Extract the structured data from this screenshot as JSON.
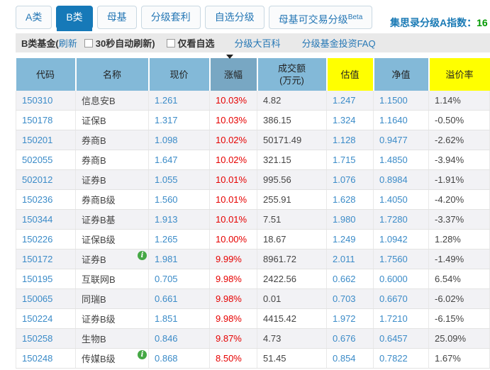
{
  "tabs": [
    {
      "label": "A类",
      "active": false
    },
    {
      "label": "B类",
      "active": true
    },
    {
      "label": "母基",
      "active": false
    },
    {
      "label": "分级套利",
      "active": false
    },
    {
      "label": "自选分级",
      "active": false
    },
    {
      "label": "母基可交易分级",
      "sup": "Beta",
      "active": false
    }
  ],
  "index_banner": {
    "label": "集思录分级A指数：",
    "value": "16"
  },
  "toolbar": {
    "title": "B类基金(",
    "refresh": "刷新",
    "auto_refresh": "30秒自动刷新)",
    "watch_only": "仅看自选",
    "wiki": "分级大百科",
    "faq": "分级基金投资FAQ"
  },
  "table": {
    "columns": [
      {
        "key": "code",
        "label": "代码",
        "type": "blue"
      },
      {
        "key": "name",
        "label": "名称",
        "type": "dark"
      },
      {
        "key": "price",
        "label": "现价",
        "type": "blue"
      },
      {
        "key": "change",
        "label": "涨幅",
        "type": "red",
        "sorted": true
      },
      {
        "key": "volume",
        "label": "成交额",
        "label2": "(万元)",
        "type": "dark"
      },
      {
        "key": "est",
        "label": "估值",
        "type": "blue",
        "highlight": true
      },
      {
        "key": "nav",
        "label": "净值",
        "type": "blue"
      },
      {
        "key": "premium",
        "label": "溢价率",
        "type": "dark",
        "highlight": true
      }
    ],
    "rows": [
      {
        "code": "150310",
        "name": "信息安B",
        "info": false,
        "price": "1.261",
        "change": "10.03%",
        "volume": "4.82",
        "est": "1.247",
        "nav": "1.1500",
        "premium": "1.14%"
      },
      {
        "code": "150178",
        "name": "证保B",
        "info": false,
        "price": "1.317",
        "change": "10.03%",
        "volume": "386.15",
        "est": "1.324",
        "nav": "1.1640",
        "premium": "-0.50%"
      },
      {
        "code": "150201",
        "name": "券商B",
        "info": false,
        "price": "1.098",
        "change": "10.02%",
        "volume": "50171.49",
        "est": "1.128",
        "nav": "0.9477",
        "premium": "-2.62%"
      },
      {
        "code": "502055",
        "name": "券商B",
        "info": false,
        "price": "1.647",
        "change": "10.02%",
        "volume": "321.15",
        "est": "1.715",
        "nav": "1.4850",
        "premium": "-3.94%"
      },
      {
        "code": "502012",
        "name": "证券B",
        "info": false,
        "price": "1.055",
        "change": "10.01%",
        "volume": "995.56",
        "est": "1.076",
        "nav": "0.8984",
        "premium": "-1.91%"
      },
      {
        "code": "150236",
        "name": "券商B级",
        "info": false,
        "price": "1.560",
        "change": "10.01%",
        "volume": "255.91",
        "est": "1.628",
        "nav": "1.4050",
        "premium": "-4.20%"
      },
      {
        "code": "150344",
        "name": "证券B基",
        "info": false,
        "price": "1.913",
        "change": "10.01%",
        "volume": "7.51",
        "est": "1.980",
        "nav": "1.7280",
        "premium": "-3.37%"
      },
      {
        "code": "150226",
        "name": "证保B级",
        "info": false,
        "price": "1.265",
        "change": "10.00%",
        "volume": "18.67",
        "est": "1.249",
        "nav": "1.0942",
        "premium": "1.28%"
      },
      {
        "code": "150172",
        "name": "证券B",
        "info": true,
        "price": "1.981",
        "change": "9.99%",
        "volume": "8961.72",
        "est": "2.011",
        "nav": "1.7560",
        "premium": "-1.49%"
      },
      {
        "code": "150195",
        "name": "互联网B",
        "info": false,
        "price": "0.705",
        "change": "9.98%",
        "volume": "2422.56",
        "est": "0.662",
        "nav": "0.6000",
        "premium": "6.54%"
      },
      {
        "code": "150065",
        "name": "同瑞B",
        "info": false,
        "price": "0.661",
        "change": "9.98%",
        "volume": "0.01",
        "est": "0.703",
        "nav": "0.6670",
        "premium": "-6.02%"
      },
      {
        "code": "150224",
        "name": "证券B级",
        "info": false,
        "price": "1.851",
        "change": "9.98%",
        "volume": "4415.42",
        "est": "1.972",
        "nav": "1.7210",
        "premium": "-6.15%"
      },
      {
        "code": "150258",
        "name": "生物B",
        "info": false,
        "price": "0.846",
        "change": "9.87%",
        "volume": "4.73",
        "est": "0.676",
        "nav": "0.6457",
        "premium": "25.09%"
      },
      {
        "code": "150248",
        "name": "传媒B级",
        "info": true,
        "price": "0.868",
        "change": "8.50%",
        "volume": "51.45",
        "est": "0.854",
        "nav": "0.7822",
        "premium": "1.67%"
      }
    ]
  },
  "colors": {
    "active_tab": "#1679b8",
    "link_blue": "#2577b5",
    "value_blue": "#3b8bc8",
    "change_red": "#e60000",
    "header_blue": "#83b9d8",
    "header_blue_sorted": "#78a7c3",
    "header_yellow": "#ffff00",
    "index_green": "#009900",
    "stripe": "#f2f2f5"
  }
}
